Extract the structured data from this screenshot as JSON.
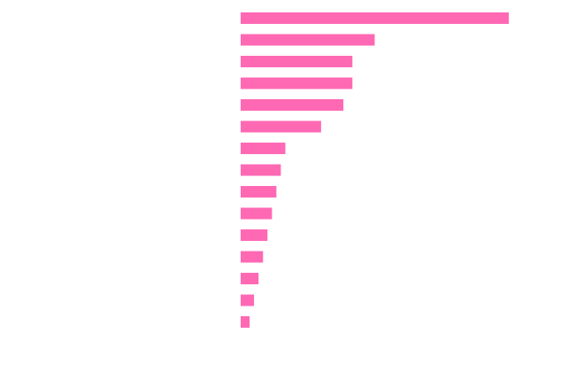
{
  "chart_data": {
    "type": "bar",
    "orientation": "horizontal",
    "categories": [
      "",
      "",
      "",
      "",
      "",
      "",
      "",
      "",
      "",
      "",
      "",
      "",
      "",
      "",
      ""
    ],
    "values": [
      60,
      30,
      25,
      25,
      23,
      18,
      10,
      9,
      8,
      7,
      6,
      5,
      4,
      3,
      2
    ],
    "xlim": [
      0,
      60
    ],
    "grid": false,
    "legend": "none",
    "bar_color": "#ff69b4"
  }
}
